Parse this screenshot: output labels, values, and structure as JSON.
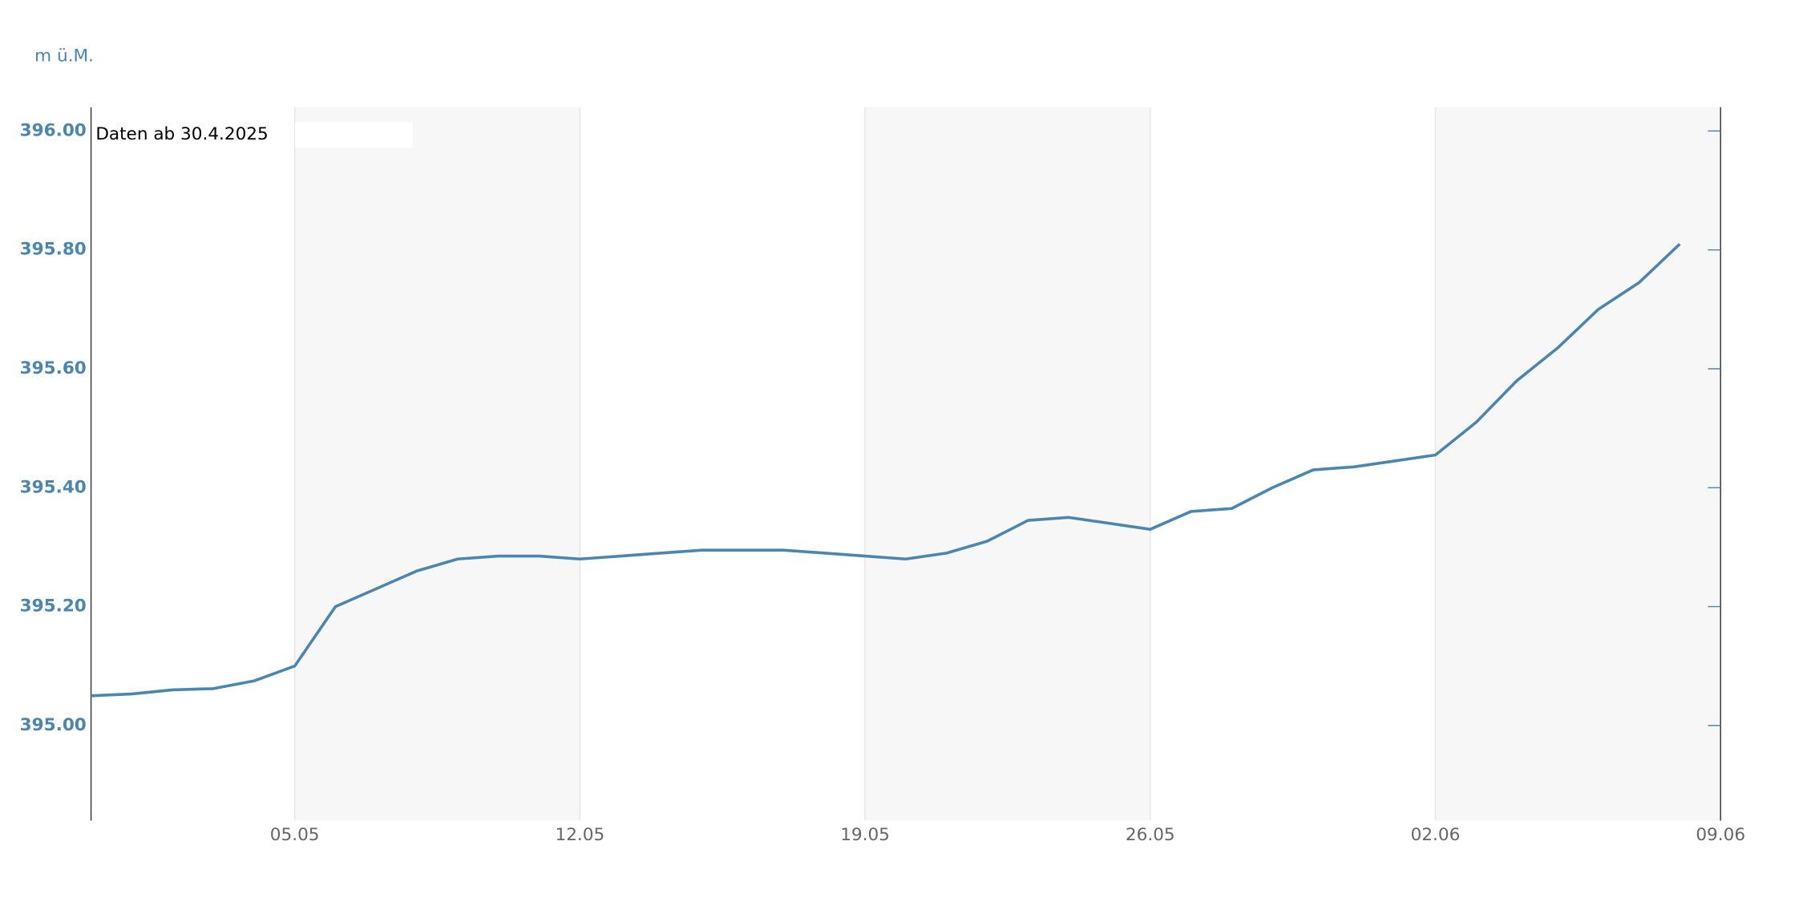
{
  "chart_data": {
    "type": "line",
    "y_unit": "m ü.M.",
    "annotation": "Daten ab 30.4.2025",
    "color": "#4a86b0",
    "x": [
      "30.04",
      "01.05",
      "02.05",
      "03.05",
      "04.05",
      "05.05",
      "06.05",
      "07.05",
      "08.05",
      "09.05",
      "10.05",
      "11.05",
      "12.05",
      "13.05",
      "14.05",
      "15.05",
      "16.05",
      "17.05",
      "18.05",
      "19.05",
      "20.05",
      "21.05",
      "22.05",
      "23.05",
      "24.05",
      "25.05",
      "26.05",
      "27.05",
      "28.05",
      "29.05",
      "30.05",
      "31.05",
      "01.06",
      "02.06",
      "03.06",
      "04.06",
      "05.06",
      "06.06",
      "07.06",
      "08.06"
    ],
    "values": [
      395.05,
      395.053,
      395.06,
      395.062,
      395.075,
      395.1,
      395.2,
      395.23,
      395.26,
      395.28,
      395.285,
      395.285,
      395.28,
      395.285,
      395.29,
      395.295,
      395.295,
      395.295,
      395.29,
      395.285,
      395.28,
      395.29,
      395.31,
      395.345,
      395.35,
      395.34,
      395.33,
      395.36,
      395.365,
      395.4,
      395.43,
      395.435,
      395.445,
      395.455,
      395.51,
      395.58,
      395.635,
      395.7,
      395.745,
      395.81
    ],
    "xlim": [
      "30.04",
      "09.06"
    ],
    "xticks": [
      "05.05",
      "12.05",
      "19.05",
      "26.05",
      "02.06",
      "09.06"
    ],
    "ylim": [
      394.84,
      396.04
    ],
    "yticks": [
      {
        "value": 395,
        "label": "395.00"
      },
      {
        "value": 395.2,
        "label": "395.20"
      },
      {
        "value": 395.4,
        "label": "395.40"
      },
      {
        "value": 395.6,
        "label": "395.60"
      },
      {
        "value": 395.8,
        "label": "395.80"
      },
      {
        "value": 396,
        "label": "396.00"
      }
    ]
  }
}
